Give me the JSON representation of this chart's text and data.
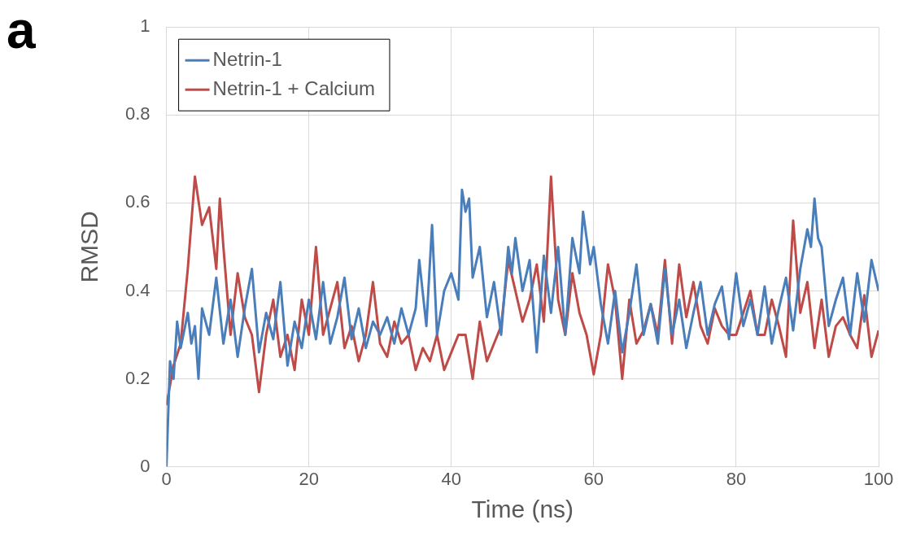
{
  "chart_data": {
    "type": "line",
    "title": "a",
    "xlabel": "Time (ns)",
    "ylabel": "RMSD",
    "xlim": [
      0,
      100
    ],
    "xticks": [
      0,
      20,
      40,
      60,
      80,
      100
    ],
    "ylim": [
      0,
      1
    ],
    "yticks": [
      0,
      0.2,
      0.4,
      0.6,
      0.8,
      1
    ],
    "grid": true,
    "legend": "top left",
    "marker": "none",
    "line_style": "solid",
    "series": [
      {
        "name": "Netrin-1",
        "color": "#4a7ebb",
        "x": [
          0,
          0.5,
          1,
          1.5,
          2,
          3,
          3.5,
          4,
          4.5,
          5,
          6,
          7,
          8,
          9,
          10,
          11,
          12,
          13,
          14,
          15,
          16,
          17,
          18,
          19,
          20,
          21,
          22,
          23,
          24,
          25,
          26,
          27,
          28,
          29,
          30,
          31,
          32,
          33,
          34,
          35,
          35.5,
          36.5,
          37.3,
          38,
          39,
          40,
          41,
          41.5,
          42,
          42.5,
          43,
          44,
          45,
          46,
          47,
          48,
          48.5,
          49,
          50,
          51,
          52,
          53,
          54,
          55,
          56,
          57,
          58,
          58.5,
          59.5,
          60,
          61,
          62,
          63,
          64,
          65,
          66,
          67,
          68,
          69,
          70,
          71,
          72,
          73,
          74,
          75,
          76,
          77,
          78,
          79,
          80,
          81,
          82,
          83,
          84,
          85,
          86,
          87,
          88,
          89,
          90,
          90.5,
          91,
          91.5,
          92,
          93,
          94,
          95,
          96,
          97,
          98,
          99,
          100
        ],
        "values": [
          0,
          0.24,
          0.2,
          0.33,
          0.27,
          0.35,
          0.28,
          0.32,
          0.2,
          0.36,
          0.3,
          0.43,
          0.28,
          0.38,
          0.25,
          0.36,
          0.45,
          0.26,
          0.35,
          0.29,
          0.42,
          0.23,
          0.33,
          0.27,
          0.38,
          0.29,
          0.42,
          0.28,
          0.34,
          0.43,
          0.29,
          0.36,
          0.27,
          0.33,
          0.3,
          0.34,
          0.28,
          0.36,
          0.3,
          0.36,
          0.47,
          0.32,
          0.55,
          0.3,
          0.4,
          0.44,
          0.38,
          0.63,
          0.58,
          0.61,
          0.43,
          0.5,
          0.34,
          0.42,
          0.3,
          0.5,
          0.44,
          0.52,
          0.4,
          0.47,
          0.26,
          0.48,
          0.35,
          0.5,
          0.3,
          0.52,
          0.44,
          0.58,
          0.46,
          0.5,
          0.37,
          0.28,
          0.4,
          0.26,
          0.35,
          0.46,
          0.3,
          0.37,
          0.28,
          0.45,
          0.3,
          0.38,
          0.27,
          0.35,
          0.42,
          0.3,
          0.37,
          0.41,
          0.29,
          0.44,
          0.32,
          0.38,
          0.3,
          0.41,
          0.28,
          0.36,
          0.43,
          0.31,
          0.45,
          0.54,
          0.5,
          0.61,
          0.52,
          0.5,
          0.32,
          0.38,
          0.43,
          0.3,
          0.44,
          0.33,
          0.47,
          0.4
        ]
      },
      {
        "name": "Netrin-1 + Calcium",
        "color": "#be4b48",
        "x": [
          0,
          1,
          2,
          3,
          4,
          5,
          6,
          7,
          7.5,
          8,
          9,
          10,
          11,
          12,
          13,
          14,
          15,
          16,
          17,
          18,
          19,
          20,
          21,
          22,
          23,
          24,
          25,
          26,
          27,
          28,
          29,
          30,
          31,
          32,
          33,
          34,
          35,
          36,
          37,
          38,
          39,
          40,
          41,
          42,
          43,
          44,
          45,
          46,
          47,
          48,
          49,
          50,
          51,
          52,
          53,
          54,
          55,
          56,
          57,
          58,
          59,
          60,
          61,
          62,
          63,
          64,
          65,
          66,
          67,
          68,
          69,
          70,
          71,
          72,
          73,
          74,
          75,
          76,
          77,
          78,
          79,
          80,
          81,
          82,
          83,
          84,
          85,
          86,
          87,
          88,
          89,
          90,
          91,
          92,
          93,
          94,
          95,
          96,
          97,
          98,
          99,
          100
        ],
        "values": [
          0.14,
          0.23,
          0.28,
          0.45,
          0.66,
          0.55,
          0.59,
          0.45,
          0.61,
          0.5,
          0.3,
          0.44,
          0.34,
          0.3,
          0.17,
          0.3,
          0.38,
          0.25,
          0.3,
          0.22,
          0.38,
          0.3,
          0.5,
          0.3,
          0.36,
          0.42,
          0.27,
          0.32,
          0.24,
          0.3,
          0.42,
          0.28,
          0.25,
          0.33,
          0.28,
          0.3,
          0.22,
          0.27,
          0.24,
          0.3,
          0.22,
          0.26,
          0.3,
          0.3,
          0.2,
          0.33,
          0.24,
          0.28,
          0.32,
          0.47,
          0.4,
          0.33,
          0.38,
          0.46,
          0.33,
          0.66,
          0.38,
          0.3,
          0.44,
          0.35,
          0.3,
          0.21,
          0.3,
          0.46,
          0.38,
          0.2,
          0.38,
          0.28,
          0.31,
          0.37,
          0.3,
          0.47,
          0.28,
          0.46,
          0.34,
          0.42,
          0.32,
          0.28,
          0.36,
          0.32,
          0.3,
          0.3,
          0.35,
          0.4,
          0.3,
          0.3,
          0.38,
          0.32,
          0.25,
          0.56,
          0.35,
          0.42,
          0.27,
          0.38,
          0.25,
          0.32,
          0.34,
          0.3,
          0.27,
          0.39,
          0.25,
          0.31
        ]
      }
    ]
  }
}
